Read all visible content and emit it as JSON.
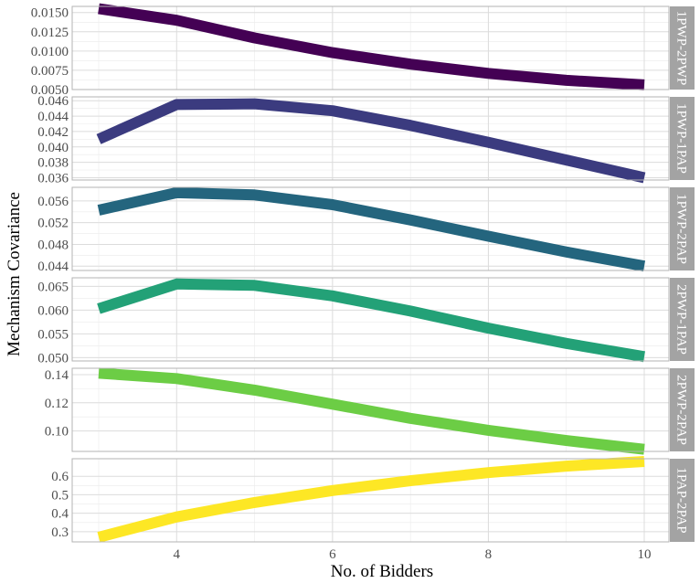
{
  "chart_data": {
    "type": "line",
    "xlabel": "No. of Bidders",
    "ylabel": "Mechanism Covariance",
    "xlim": [
      2.98,
      10.0
    ],
    "x_ticks": [
      4,
      6,
      8,
      10
    ],
    "x": [
      3,
      4,
      5,
      6,
      7,
      8,
      9,
      10
    ],
    "grid": true,
    "legend": "none",
    "panels": [
      {
        "label": "1PWP-2PWP",
        "color": "#440154",
        "ylim": [
          0.005,
          0.0158
        ],
        "y_ticks": [
          0.005,
          0.0075,
          0.01,
          0.0125,
          0.015
        ],
        "y_tick_labels": [
          "0.0050",
          "0.0075",
          "0.0100",
          "0.0125",
          "0.0150"
        ],
        "values": [
          0.0155,
          0.014,
          0.0117,
          0.0098,
          0.0083,
          0.0071,
          0.0062,
          0.0056
        ]
      },
      {
        "label": "1PWP-1PAP",
        "color": "#3b3b7f",
        "ylim": [
          0.0357,
          0.0465
        ],
        "y_ticks": [
          0.036,
          0.038,
          0.04,
          0.042,
          0.044,
          0.046
        ],
        "y_tick_labels": [
          "0.036",
          "0.038",
          "0.040",
          "0.042",
          "0.044",
          "0.046"
        ],
        "values": [
          0.041,
          0.0455,
          0.0456,
          0.0447,
          0.0428,
          0.0406,
          0.0383,
          0.036
        ]
      },
      {
        "label": "1PWP-2PAP",
        "color": "#24657e",
        "ylim": [
          0.0432,
          0.0585
        ],
        "y_ticks": [
          0.044,
          0.048,
          0.052,
          0.056
        ],
        "y_tick_labels": [
          "0.044",
          "0.048",
          "0.052",
          "0.056"
        ],
        "values": [
          0.0543,
          0.0575,
          0.0571,
          0.0553,
          0.0525,
          0.0495,
          0.0466,
          0.044
        ]
      },
      {
        "label": "2PWP-1PAP",
        "color": "#23a177",
        "ylim": [
          0.0493,
          0.0668
        ],
        "y_ticks": [
          0.05,
          0.055,
          0.06,
          0.065
        ],
        "y_tick_labels": [
          "0.050",
          "0.055",
          "0.060",
          "0.065"
        ],
        "values": [
          0.0603,
          0.0655,
          0.0652,
          0.063,
          0.0598,
          0.0562,
          0.053,
          0.0502
        ]
      },
      {
        "label": "2PWP-2PAP",
        "color": "#6ccd45",
        "ylim": [
          0.0855,
          0.1445
        ],
        "y_ticks": [
          0.1,
          0.12,
          0.14
        ],
        "y_tick_labels": [
          "0.10",
          "0.12",
          "0.14"
        ],
        "values": [
          0.141,
          0.1372,
          0.129,
          0.119,
          0.109,
          0.1005,
          0.0932,
          0.087
        ]
      },
      {
        "label": "1PAP-2PAP",
        "color": "#fde725",
        "ylim": [
          0.245,
          0.695
        ],
        "y_ticks": [
          0.3,
          0.4,
          0.5,
          0.6
        ],
        "y_tick_labels": [
          "0.3",
          "0.4",
          "0.5",
          "0.6"
        ],
        "values": [
          0.27,
          0.38,
          0.458,
          0.523,
          0.576,
          0.62,
          0.655,
          0.68
        ]
      }
    ]
  }
}
